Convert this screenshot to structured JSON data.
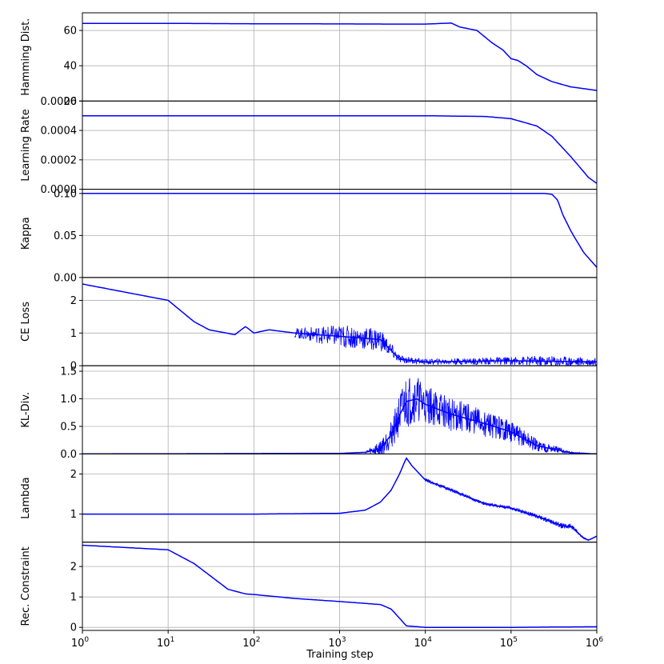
{
  "chart_data": [
    {
      "type": "line",
      "ylabel": "Hamming Dist.",
      "xscale": "log",
      "xlim": [
        1,
        1000000
      ],
      "ylim": [
        20,
        70
      ],
      "yticks": [
        20,
        40,
        60
      ],
      "ytick_labels": [
        "20",
        "40",
        "60"
      ],
      "grid": true,
      "color": "#0000ff",
      "series": [
        {
          "x": [
            1,
            10,
            100,
            1000,
            5000,
            10000,
            20000,
            25000,
            40000,
            60000,
            80000,
            100000,
            120000,
            150000,
            200000,
            300000,
            500000,
            1000000
          ],
          "y": [
            64,
            64,
            63.8,
            63.7,
            63.6,
            63.6,
            64.2,
            62,
            60,
            53,
            49,
            44,
            43,
            40,
            35,
            31,
            28,
            26
          ]
        }
      ]
    },
    {
      "type": "line",
      "ylabel": "Learning Rate",
      "xscale": "log",
      "xlim": [
        1,
        1000000
      ],
      "ylim": [
        0,
        0.0006
      ],
      "yticks": [
        0,
        0.0002,
        0.0004,
        0.0006
      ],
      "ytick_labels": [
        "0.0000",
        "0.0002",
        "0.0004",
        "0.0006"
      ],
      "grid": true,
      "color": "#0000ff",
      "series": [
        {
          "x": [
            1,
            10,
            100,
            1000,
            10000,
            50000,
            100000,
            200000,
            300000,
            500000,
            800000,
            1000000
          ],
          "y": [
            0.0005,
            0.0005,
            0.0005,
            0.0005,
            0.0005,
            0.000495,
            0.00048,
            0.00043,
            0.00036,
            0.00022,
            8e-05,
            4e-05
          ]
        }
      ]
    },
    {
      "type": "line",
      "ylabel": "Kappa",
      "xscale": "log",
      "xlim": [
        1,
        1000000
      ],
      "ylim": [
        0,
        0.105
      ],
      "yticks": [
        0,
        0.05,
        0.1
      ],
      "ytick_labels": [
        "0.00",
        "0.05",
        "0.10"
      ],
      "grid": true,
      "color": "#0000ff",
      "series": [
        {
          "x": [
            1,
            1000,
            100000,
            250000,
            300000,
            350000,
            400000,
            500000,
            700000,
            1000000
          ],
          "y": [
            0.1,
            0.1,
            0.1,
            0.1,
            0.099,
            0.092,
            0.075,
            0.055,
            0.03,
            0.012
          ]
        }
      ]
    },
    {
      "type": "line",
      "ylabel": "CE Loss",
      "xscale": "log",
      "xlim": [
        1,
        1000000
      ],
      "ylim": [
        0,
        2.7
      ],
      "yticks": [
        0,
        1,
        2
      ],
      "ytick_labels": [
        "0",
        "1",
        "2"
      ],
      "grid": true,
      "color": "#0000ff",
      "series": [
        {
          "x": [
            1,
            10,
            20,
            30,
            60,
            80,
            100,
            150,
            300,
            1000,
            3000,
            5000,
            10000,
            100000,
            1000000
          ],
          "y": [
            2.5,
            2.0,
            1.35,
            1.1,
            0.95,
            1.2,
            1.0,
            1.1,
            1.0,
            0.9,
            0.8,
            0.2,
            0.12,
            0.15,
            0.12
          ]
        }
      ],
      "noise_band": {
        "x": [
          300,
          1000,
          3000,
          5000,
          10000,
          100000,
          300000,
          1000000
        ],
        "amplitude": [
          0.15,
          0.35,
          0.35,
          0.12,
          0.08,
          0.12,
          0.18,
          0.12
        ]
      }
    },
    {
      "type": "line",
      "ylabel": "KL-Div.",
      "xscale": "log",
      "xlim": [
        1,
        1000000
      ],
      "ylim": [
        0,
        1.6
      ],
      "yticks": [
        0,
        0.5,
        1.0,
        1.5
      ],
      "ytick_labels": [
        "0.0",
        "0.5",
        "1.0",
        "1.5"
      ],
      "grid": true,
      "color": "#0000ff",
      "series": [
        {
          "x": [
            1,
            1000,
            2000,
            3000,
            4000,
            5000,
            6000,
            8000,
            10000,
            20000,
            50000,
            100000,
            200000,
            500000,
            1000000
          ],
          "y": [
            0,
            0.01,
            0.03,
            0.1,
            0.35,
            0.7,
            0.95,
            1.0,
            0.9,
            0.72,
            0.55,
            0.4,
            0.15,
            0.02,
            0
          ]
        }
      ],
      "noise_band": {
        "x": [
          2000,
          4000,
          6000,
          10000,
          100000,
          200000,
          500000,
          1000000
        ],
        "amplitude": [
          0.02,
          0.25,
          0.5,
          0.35,
          0.2,
          0.12,
          0.02,
          0.0
        ]
      }
    },
    {
      "type": "line",
      "ylabel": "Lambda",
      "xscale": "log",
      "xlim": [
        1,
        1000000
      ],
      "ylim": [
        0.3,
        2.5
      ],
      "yticks": [
        1,
        2
      ],
      "ytick_labels": [
        "1",
        "2"
      ],
      "grid": true,
      "color": "#0000ff",
      "series": [
        {
          "x": [
            1,
            100,
            1000,
            2000,
            3000,
            4000,
            5000,
            6000,
            7000,
            10000,
            20000,
            50000,
            100000,
            200000,
            400000,
            500000,
            700000,
            800000,
            1000000
          ],
          "y": [
            1.0,
            1.0,
            1.02,
            1.1,
            1.3,
            1.6,
            2.0,
            2.4,
            2.2,
            1.85,
            1.6,
            1.25,
            1.15,
            0.95,
            0.7,
            0.7,
            0.4,
            0.35,
            0.45
          ]
        }
      ],
      "noise_band": {
        "x": [
          10000,
          100000,
          300000,
          500000,
          700000,
          1000000
        ],
        "amplitude": [
          0.04,
          0.04,
          0.06,
          0.07,
          0.02,
          0.0
        ]
      }
    },
    {
      "type": "line",
      "ylabel": "Rec. Constraint",
      "xlabel": "Training step",
      "xscale": "log",
      "xlim": [
        1,
        1000000
      ],
      "ylim": [
        -0.1,
        2.8
      ],
      "yticks": [
        0,
        1,
        2
      ],
      "ytick_labels": [
        "0",
        "1",
        "2"
      ],
      "xticks": [
        1,
        10,
        100,
        1000,
        10000,
        100000,
        1000000
      ],
      "xtick_labels": [
        [
          "10",
          "0"
        ],
        [
          "10",
          "1"
        ],
        [
          "10",
          "2"
        ],
        [
          "10",
          "3"
        ],
        [
          "10",
          "4"
        ],
        [
          "10",
          "5"
        ],
        [
          "10",
          "6"
        ]
      ],
      "grid": true,
      "color": "#0000ff",
      "series": [
        {
          "x": [
            1,
            10,
            20,
            50,
            80,
            100,
            300,
            1000,
            3000,
            4000,
            5000,
            6000,
            10000,
            100000,
            1000000
          ],
          "y": [
            2.7,
            2.55,
            2.1,
            1.25,
            1.1,
            1.08,
            0.95,
            0.85,
            0.75,
            0.6,
            0.3,
            0.05,
            0.0,
            0.0,
            0.02
          ]
        }
      ]
    }
  ]
}
